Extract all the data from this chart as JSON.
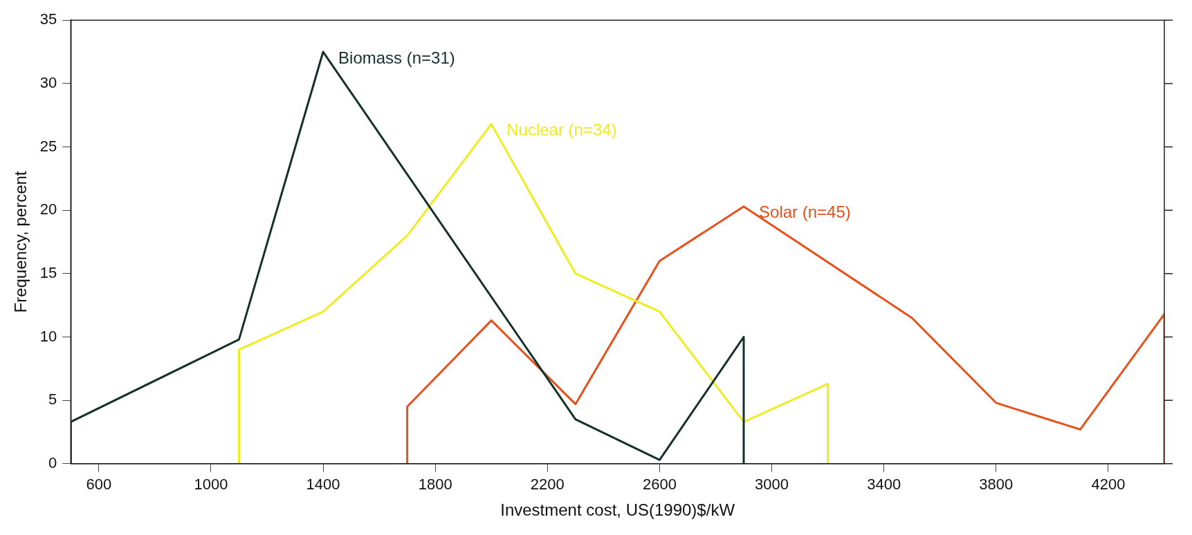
{
  "chart_data": {
    "type": "line",
    "xlabel": "Investment cost, US(1990)$/kW",
    "ylabel": "Frequency, percent",
    "xlim": [
      500,
      4400
    ],
    "xticks": [
      600,
      1000,
      1400,
      1800,
      2200,
      2600,
      3000,
      3400,
      3800,
      4200
    ],
    "ylim": [
      0,
      35
    ],
    "yticks": [
      0,
      5,
      10,
      15,
      20,
      25,
      30,
      35
    ],
    "grid": false,
    "legend": false,
    "marker": "none",
    "line_style": "solid",
    "series": [
      {
        "name": "Biomass (n=31)",
        "color": "#14302a",
        "x": [
          500,
          500,
          1100,
          1400,
          2300,
          2600,
          2900,
          2900
        ],
        "values": [
          0,
          3.3,
          9.8,
          32.5,
          3.5,
          0.3,
          10,
          0
        ]
      },
      {
        "name": "Nuclear (n=34)",
        "color": "#f0ec20",
        "x": [
          1100,
          1100,
          1400,
          1700,
          2000,
          2300,
          2600,
          2900,
          3200,
          3200
        ],
        "values": [
          0,
          9,
          12,
          18,
          26.8,
          15,
          12,
          3.3,
          6.3,
          0
        ]
      },
      {
        "name": "Solar (n=45)",
        "color": "#e8501a",
        "x": [
          1700,
          1700,
          2000,
          2300,
          2600,
          2900,
          3500,
          3800,
          4100,
          4400,
          4400
        ],
        "values": [
          0,
          4.5,
          11.3,
          4.7,
          16,
          20.3,
          11.5,
          4.8,
          2.7,
          11.8,
          0
        ]
      }
    ]
  }
}
